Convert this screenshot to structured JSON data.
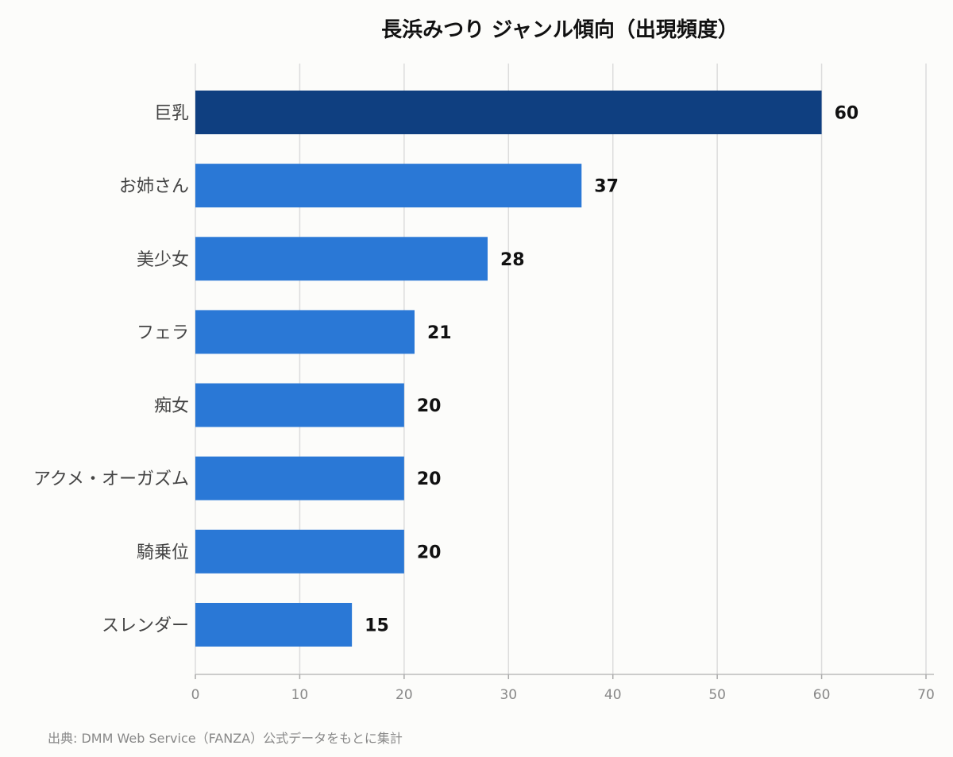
{
  "chart_data": {
    "type": "bar",
    "orientation": "horizontal",
    "title": "長浜みつり ジャンル傾向（出現頻度）",
    "categories": [
      "巨乳",
      "お姉さん",
      "美少女",
      "フェラ",
      "痴女",
      "アクメ・オーガズム",
      "騎乗位",
      "スレンダー"
    ],
    "values": [
      60,
      37,
      28,
      21,
      20,
      20,
      20,
      15
    ],
    "xlim": [
      0,
      70
    ],
    "xticks": [
      0,
      10,
      20,
      30,
      40,
      50,
      60,
      70
    ],
    "grid": "vertical",
    "colors": {
      "highlight": "#0f3f80",
      "bar": "#2a78d6"
    }
  },
  "footer": {
    "source": "出典: DMM Web Service（FANZA）公式データをもとに集計"
  }
}
